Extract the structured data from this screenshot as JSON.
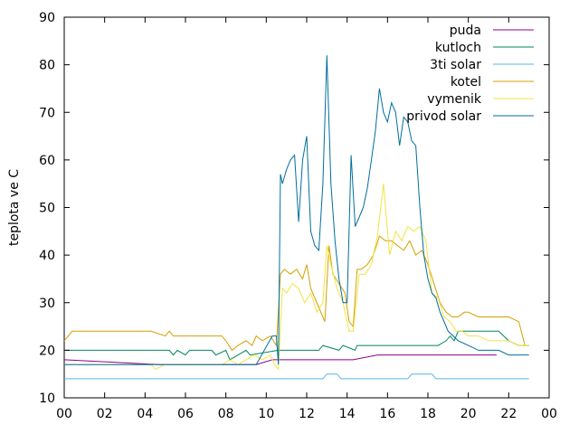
{
  "chart_data": {
    "type": "line",
    "xlabel": "",
    "ylabel": "teplota ve C",
    "xlim": [
      0,
      24
    ],
    "ylim": [
      10,
      90
    ],
    "x_ticks": [
      "00",
      "02",
      "04",
      "06",
      "08",
      "10",
      "12",
      "14",
      "16",
      "18",
      "20",
      "22",
      "00"
    ],
    "y_ticks": [
      "10",
      "20",
      "30",
      "40",
      "50",
      "60",
      "70",
      "80",
      "90"
    ],
    "legend_position": "top-right",
    "grid": false,
    "series": [
      {
        "name": "puda",
        "color": "#8b008b",
        "x": [
          0,
          4.7,
          9.5,
          10.3,
          14.3,
          15.5,
          18.5,
          21.4
        ],
        "y": [
          18,
          17,
          17,
          18,
          18,
          19,
          19,
          19
        ]
      },
      {
        "name": "kutloch",
        "color": "#00875a",
        "x": [
          0,
          5.2,
          5.4,
          5.6,
          6.0,
          6.2,
          7.3,
          7.5,
          8.0,
          8.2,
          9.0,
          9.2,
          10.6,
          12.6,
          12.8,
          13.6,
          13.8,
          14.4,
          14.5,
          17.0,
          17.2,
          18.5,
          18.9,
          19.1,
          19.3,
          19.5,
          20.0,
          21.0,
          21.5,
          22.0,
          22.5,
          23.0
        ],
        "y": [
          20,
          20,
          19,
          20,
          19,
          20,
          20,
          19,
          20,
          18,
          20,
          19,
          20,
          20,
          21,
          20,
          21,
          20,
          21,
          21,
          21,
          21,
          22,
          23,
          22,
          24,
          24,
          24,
          24,
          22,
          21,
          21
        ]
      },
      {
        "name": "3ti solar",
        "color": "#56b4e9",
        "x": [
          0,
          12.8,
          13.0,
          13.5,
          13.7,
          17.0,
          17.2,
          18.2,
          18.4,
          23.0
        ],
        "y": [
          14,
          14,
          15,
          15,
          14,
          14,
          15,
          15,
          14,
          14
        ]
      },
      {
        "name": "kotel",
        "color": "#d4a000",
        "x": [
          0,
          0.4,
          4.3,
          5.0,
          5.2,
          5.4,
          7.8,
          8.0,
          8.3,
          8.6,
          9.0,
          9.3,
          9.5,
          9.8,
          10.2,
          10.5,
          10.7,
          10.9,
          11.2,
          11.5,
          11.8,
          12.0,
          12.2,
          12.4,
          12.6,
          12.9,
          13.1,
          13.3,
          13.6,
          13.9,
          14.1,
          14.3,
          14.5,
          14.7,
          15.0,
          15.3,
          15.6,
          15.9,
          16.2,
          16.5,
          16.8,
          17.1,
          17.4,
          17.7,
          18.0,
          18.3,
          18.6,
          18.9,
          19.2,
          19.5,
          19.8,
          20.0,
          20.5,
          21.0,
          21.5,
          22.0,
          22.5,
          22.8,
          23.0
        ],
        "y": [
          22,
          24,
          24,
          23,
          24,
          23,
          23,
          22,
          20,
          21,
          22,
          21,
          23,
          22,
          23,
          21,
          36,
          37,
          36,
          37,
          35,
          38,
          33,
          31,
          29,
          26,
          42,
          36,
          34,
          32,
          26,
          25,
          37,
          37,
          38,
          40,
          44,
          43,
          43,
          42,
          41,
          43,
          40,
          41,
          38,
          34,
          30,
          28,
          27,
          27,
          28,
          28,
          27,
          27,
          27,
          27,
          26,
          21,
          21
        ]
      },
      {
        "name": "vymenik",
        "color": "#f0e442",
        "x": [
          0,
          4.3,
          4.5,
          5.0,
          6.0,
          7.0,
          7.8,
          8.2,
          8.6,
          9.0,
          9.4,
          9.8,
          10.2,
          10.4,
          10.6,
          10.8,
          11.0,
          11.3,
          11.6,
          11.9,
          12.2,
          12.5,
          12.8,
          13.0,
          13.2,
          13.5,
          13.8,
          14.1,
          14.3,
          14.6,
          14.9,
          15.2,
          15.5,
          15.8,
          16.1,
          16.4,
          16.7,
          17.0,
          17.3,
          17.6,
          17.9,
          18.2,
          18.5,
          18.8,
          19.1,
          19.4,
          19.7,
          20.0,
          20.5,
          21.0,
          21.5,
          22.0,
          22.5,
          23.0
        ],
        "y": [
          17,
          17,
          16,
          17,
          17,
          17,
          17,
          18,
          17,
          18,
          19,
          18,
          19,
          17,
          16,
          33,
          32,
          34,
          33,
          30,
          32,
          28,
          30,
          42,
          38,
          33,
          30,
          24,
          24,
          36,
          36,
          38,
          44,
          55,
          40,
          45,
          43,
          46,
          45,
          46,
          43,
          32,
          31,
          27,
          26,
          24,
          24,
          23,
          23,
          22,
          22,
          22,
          21,
          21
        ]
      },
      {
        "name": "privod solar",
        "color": "#006e9e",
        "x": [
          0,
          9.5,
          10.3,
          10.5,
          10.6,
          10.7,
          10.8,
          11.0,
          11.2,
          11.4,
          11.6,
          11.8,
          12.0,
          12.2,
          12.4,
          12.6,
          12.8,
          13.0,
          13.2,
          13.4,
          13.6,
          13.8,
          14.0,
          14.2,
          14.4,
          14.6,
          14.8,
          15.0,
          15.2,
          15.4,
          15.6,
          15.8,
          16.0,
          16.2,
          16.4,
          16.6,
          16.8,
          17.0,
          17.2,
          17.4,
          17.6,
          17.8,
          18.0,
          18.2,
          18.4,
          18.6,
          18.8,
          19.0,
          19.5,
          20.0,
          20.5,
          21.0,
          21.5,
          22.0,
          22.5,
          23.0
        ],
        "y": [
          17,
          17,
          23,
          23,
          17,
          57,
          55,
          58,
          60,
          61,
          47,
          60,
          65,
          45,
          42,
          41,
          55,
          82,
          55,
          43,
          35,
          30,
          30,
          61,
          46,
          48,
          50,
          54,
          60,
          66,
          75,
          70,
          68,
          72,
          70,
          63,
          69,
          68,
          64,
          63,
          50,
          40,
          35,
          32,
          31,
          28,
          26,
          24,
          22,
          21,
          20,
          20,
          20,
          19,
          19,
          19
        ]
      }
    ]
  }
}
